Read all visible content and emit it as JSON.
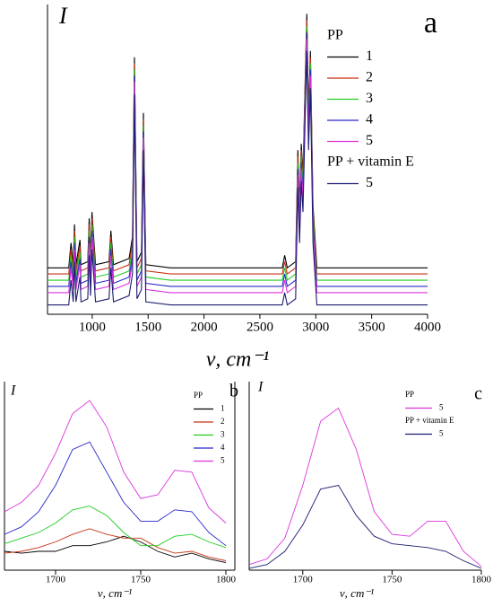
{
  "chart_data": [
    {
      "type": "line",
      "panel_label": "a",
      "y_label": "I",
      "x_label": "ν, cm⁻¹",
      "xlim": [
        600,
        4000
      ],
      "ylim": [
        0,
        100
      ],
      "xticks": [
        1000,
        1500,
        2000,
        2500,
        3000,
        3500,
        4000
      ],
      "x": [
        600,
        790,
        810,
        830,
        841,
        855,
        890,
        900,
        960,
        973,
        985,
        998,
        1030,
        1150,
        1167,
        1190,
        1330,
        1360,
        1378,
        1400,
        1440,
        1458,
        1480,
        1700,
        2700,
        2722,
        2745,
        2820,
        2840,
        2855,
        2870,
        2885,
        2905,
        2920,
        2935,
        2952,
        2975,
        3010,
        4000
      ],
      "series_groups": [
        {
          "name": "PP",
          "series": [
            {
              "name": "1",
              "color": "#000000",
              "values": [
                15,
                15,
                23,
                16,
                29,
                16,
                24,
                16,
                17,
                31,
                18,
                33,
                16,
                17,
                27,
                16,
                18,
                25,
                83,
                17,
                20,
                65,
                16,
                15,
                15,
                19,
                15,
                17,
                53,
                35,
                55,
                45,
                75,
                97,
                65,
                85,
                35,
                15,
                15
              ]
            },
            {
              "name": "2",
              "color": "#c83214",
              "values": [
                13,
                13,
                21,
                14,
                27,
                14,
                22,
                14,
                15,
                29,
                16,
                31,
                14,
                15,
                25,
                14,
                16,
                23,
                81,
                15,
                18,
                63,
                14,
                13,
                13,
                17,
                13,
                15,
                51,
                33,
                53,
                43,
                73,
                95,
                63,
                83,
                33,
                13,
                13
              ]
            },
            {
              "name": "3",
              "color": "#22cc22",
              "values": [
                11,
                11,
                19,
                12,
                25,
                12,
                20,
                12,
                13,
                27,
                14,
                29,
                12,
                13,
                23,
                12,
                14,
                21,
                79,
                13,
                16,
                61,
                12,
                11,
                11,
                15,
                11,
                13,
                49,
                31,
                51,
                41,
                71,
                93,
                61,
                81,
                31,
                11,
                11
              ]
            },
            {
              "name": "4",
              "color": "#2828c8",
              "values": [
                9,
                9,
                17,
                10,
                23,
                10,
                18,
                10,
                11,
                25,
                12,
                27,
                10,
                11,
                21,
                10,
                12,
                19,
                77,
                11,
                14,
                59,
                10,
                9,
                9,
                13,
                9,
                11,
                47,
                29,
                49,
                39,
                69,
                91,
                59,
                79,
                29,
                9,
                9
              ]
            },
            {
              "name": "5",
              "color": "#dd33dd",
              "values": [
                7,
                7,
                15,
                8,
                21,
                8,
                16,
                8,
                9,
                23,
                10,
                25,
                8,
                9,
                19,
                8,
                10,
                17,
                75,
                9,
                12,
                57,
                8,
                7,
                7,
                11,
                7,
                9,
                45,
                27,
                47,
                37,
                67,
                89,
                57,
                77,
                27,
                7,
                7
              ]
            }
          ]
        },
        {
          "name": "PP + vitamin E",
          "series": [
            {
              "name": "5",
              "color": "#1c1c70",
              "values": [
                3,
                3,
                11,
                4,
                17,
                4,
                12,
                4,
                5,
                19,
                6,
                21,
                4,
                5,
                15,
                4,
                6,
                13,
                71,
                5,
                8,
                53,
                4,
                3,
                3,
                7,
                3,
                5,
                41,
                23,
                43,
                33,
                63,
                85,
                53,
                73,
                23,
                3,
                3
              ]
            }
          ]
        }
      ]
    },
    {
      "type": "line",
      "panel_label": "b",
      "y_label": "I",
      "x_label": "ν, cm⁻¹",
      "xlim": [
        1670,
        1800
      ],
      "ylim": [
        0,
        100
      ],
      "xticks": [
        1700,
        1750,
        1800
      ],
      "x": [
        1670,
        1680,
        1690,
        1700,
        1710,
        1720,
        1730,
        1740,
        1750,
        1760,
        1770,
        1780,
        1790,
        1800
      ],
      "series_groups": [
        {
          "name": "PP",
          "series": [
            {
              "name": "1",
              "color": "#000000",
              "values": [
                10,
                9,
                10,
                10,
                13,
                13,
                15,
                18,
                15,
                10,
                7,
                9,
                6,
                4
              ]
            },
            {
              "name": "2",
              "color": "#c83214",
              "values": [
                9,
                10,
                12,
                15,
                19,
                22,
                19,
                17,
                17,
                12,
                9,
                10,
                7,
                5
              ]
            },
            {
              "name": "3",
              "color": "#22cc22",
              "values": [
                14,
                17,
                20,
                25,
                32,
                34,
                29,
                20,
                13,
                13,
                18,
                19,
                15,
                12
              ]
            },
            {
              "name": "4",
              "color": "#2828c8",
              "values": [
                19,
                23,
                31,
                45,
                64,
                68,
                52,
                36,
                26,
                26,
                32,
                31,
                20,
                13
              ]
            },
            {
              "name": "5",
              "color": "#dd33dd",
              "values": [
                31,
                36,
                45,
                62,
                83,
                90,
                76,
                52,
                38,
                40,
                53,
                52,
                33,
                25
              ]
            }
          ]
        }
      ]
    },
    {
      "type": "line",
      "panel_label": "c",
      "y_label": "I",
      "x_label": "ν, cm⁻¹",
      "xlim": [
        1670,
        1800
      ],
      "ylim": [
        0,
        100
      ],
      "xticks": [
        1700,
        1750,
        1800
      ],
      "x": [
        1670,
        1680,
        1690,
        1700,
        1710,
        1720,
        1730,
        1740,
        1750,
        1760,
        1770,
        1780,
        1790,
        1800
      ],
      "series_groups": [
        {
          "name": "PP",
          "series": [
            {
              "name": "5",
              "color": "#dd33dd",
              "values": [
                3,
                6,
                17,
                45,
                79,
                86,
                64,
                31,
                19,
                18,
                26,
                26,
                10,
                2
              ]
            }
          ]
        },
        {
          "name": "PP + vitamin E",
          "series": [
            {
              "name": "5",
              "color": "#1c1c70",
              "values": [
                1,
                3,
                10,
                24,
                43,
                45,
                29,
                18,
                14,
                13,
                12,
                10,
                5,
                1
              ]
            }
          ]
        }
      ]
    }
  ]
}
